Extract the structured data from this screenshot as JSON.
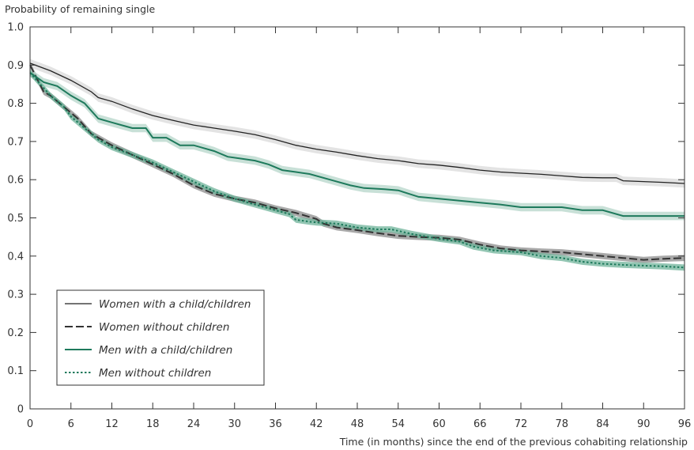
{
  "chart_data": {
    "type": "line",
    "ylabel": "Probability of remaining single",
    "xlabel": "Time (in months) since the end of the previous cohabiting relationship",
    "xlim": [
      0,
      96
    ],
    "ylim": [
      0,
      1.0
    ],
    "x_ticks": [
      0,
      6,
      12,
      18,
      24,
      30,
      36,
      42,
      48,
      54,
      60,
      66,
      72,
      78,
      84,
      90,
      96
    ],
    "y_ticks": [
      0,
      0.1,
      0.2,
      0.3,
      0.4,
      0.5,
      0.6,
      0.7,
      0.8,
      0.9,
      1.0
    ],
    "y_tick_labels": [
      "0",
      "0.1",
      "0.2",
      "0.3",
      "0.4",
      "0.5",
      "0.6",
      "0.7",
      "0.8",
      "0.9",
      "1.0"
    ],
    "grid": false,
    "legend_position": "bottom-left",
    "series": [
      {
        "name": "Women with a child/children",
        "color": "#222222",
        "band_color": "#d9d9d9",
        "dash": "solid",
        "band_halfwidth": 0.011,
        "points": [
          [
            0,
            0.905
          ],
          [
            3,
            0.885
          ],
          [
            6,
            0.86
          ],
          [
            9,
            0.83
          ],
          [
            10,
            0.815
          ],
          [
            12,
            0.805
          ],
          [
            15,
            0.785
          ],
          [
            18,
            0.768
          ],
          [
            21,
            0.755
          ],
          [
            24,
            0.743
          ],
          [
            27,
            0.735
          ],
          [
            30,
            0.727
          ],
          [
            33,
            0.718
          ],
          [
            36,
            0.705
          ],
          [
            39,
            0.69
          ],
          [
            42,
            0.68
          ],
          [
            45,
            0.672
          ],
          [
            48,
            0.663
          ],
          [
            51,
            0.655
          ],
          [
            54,
            0.65
          ],
          [
            57,
            0.642
          ],
          [
            60,
            0.638
          ],
          [
            63,
            0.632
          ],
          [
            66,
            0.625
          ],
          [
            69,
            0.62
          ],
          [
            72,
            0.617
          ],
          [
            75,
            0.614
          ],
          [
            78,
            0.61
          ],
          [
            81,
            0.606
          ],
          [
            84,
            0.605
          ],
          [
            86,
            0.605
          ],
          [
            87,
            0.597
          ],
          [
            90,
            0.595
          ],
          [
            93,
            0.593
          ],
          [
            96,
            0.59
          ]
        ]
      },
      {
        "name": "Women without children",
        "color": "#333333",
        "band_color": "#8c8c8c",
        "dash": "long-dash",
        "band_halfwidth": 0.008,
        "points": [
          [
            0,
            0.9
          ],
          [
            2,
            0.83
          ],
          [
            3,
            0.82
          ],
          [
            5,
            0.79
          ],
          [
            7,
            0.76
          ],
          [
            8,
            0.74
          ],
          [
            9,
            0.72
          ],
          [
            10,
            0.71
          ],
          [
            12,
            0.69
          ],
          [
            15,
            0.665
          ],
          [
            18,
            0.64
          ],
          [
            21,
            0.615
          ],
          [
            24,
            0.585
          ],
          [
            27,
            0.563
          ],
          [
            30,
            0.55
          ],
          [
            33,
            0.54
          ],
          [
            36,
            0.525
          ],
          [
            39,
            0.513
          ],
          [
            42,
            0.497
          ],
          [
            43,
            0.485
          ],
          [
            45,
            0.475
          ],
          [
            48,
            0.468
          ],
          [
            51,
            0.46
          ],
          [
            54,
            0.453
          ],
          [
            57,
            0.45
          ],
          [
            60,
            0.448
          ],
          [
            63,
            0.443
          ],
          [
            66,
            0.43
          ],
          [
            69,
            0.42
          ],
          [
            72,
            0.415
          ],
          [
            75,
            0.412
          ],
          [
            78,
            0.41
          ],
          [
            81,
            0.405
          ],
          [
            84,
            0.4
          ],
          [
            87,
            0.395
          ],
          [
            90,
            0.39
          ],
          [
            93,
            0.393
          ],
          [
            96,
            0.395
          ]
        ]
      },
      {
        "name": "Men with a child/children",
        "color": "#1e7a5c",
        "band_color": "#b5d6c9",
        "dash": "solid",
        "band_halfwidth": 0.011,
        "points": [
          [
            0,
            0.88
          ],
          [
            2,
            0.855
          ],
          [
            4,
            0.845
          ],
          [
            6,
            0.82
          ],
          [
            8,
            0.8
          ],
          [
            10,
            0.76
          ],
          [
            12,
            0.75
          ],
          [
            14,
            0.74
          ],
          [
            15,
            0.735
          ],
          [
            17,
            0.735
          ],
          [
            18,
            0.71
          ],
          [
            20,
            0.71
          ],
          [
            21,
            0.7
          ],
          [
            22,
            0.69
          ],
          [
            24,
            0.69
          ],
          [
            27,
            0.675
          ],
          [
            29,
            0.66
          ],
          [
            31,
            0.655
          ],
          [
            33,
            0.65
          ],
          [
            35,
            0.64
          ],
          [
            37,
            0.625
          ],
          [
            39,
            0.62
          ],
          [
            41,
            0.615
          ],
          [
            44,
            0.6
          ],
          [
            47,
            0.585
          ],
          [
            49,
            0.578
          ],
          [
            52,
            0.575
          ],
          [
            54,
            0.572
          ],
          [
            57,
            0.555
          ],
          [
            60,
            0.55
          ],
          [
            63,
            0.545
          ],
          [
            66,
            0.54
          ],
          [
            69,
            0.535
          ],
          [
            72,
            0.528
          ],
          [
            78,
            0.528
          ],
          [
            81,
            0.52
          ],
          [
            84,
            0.52
          ],
          [
            87,
            0.505
          ],
          [
            90,
            0.505
          ],
          [
            96,
            0.505
          ]
        ]
      },
      {
        "name": "Men without children",
        "color": "#1e7a5c",
        "band_color": "#6fb39a",
        "dash": "dotted",
        "band_halfwidth": 0.008,
        "points": [
          [
            0,
            0.88
          ],
          [
            2,
            0.84
          ],
          [
            3,
            0.82
          ],
          [
            5,
            0.79
          ],
          [
            6,
            0.765
          ],
          [
            8,
            0.735
          ],
          [
            10,
            0.705
          ],
          [
            12,
            0.685
          ],
          [
            15,
            0.665
          ],
          [
            18,
            0.645
          ],
          [
            21,
            0.62
          ],
          [
            24,
            0.595
          ],
          [
            27,
            0.57
          ],
          [
            30,
            0.55
          ],
          [
            33,
            0.535
          ],
          [
            36,
            0.52
          ],
          [
            38,
            0.51
          ],
          [
            39,
            0.495
          ],
          [
            41,
            0.49
          ],
          [
            42,
            0.488
          ],
          [
            45,
            0.485
          ],
          [
            48,
            0.475
          ],
          [
            51,
            0.47
          ],
          [
            53,
            0.47
          ],
          [
            56,
            0.458
          ],
          [
            60,
            0.445
          ],
          [
            63,
            0.438
          ],
          [
            65,
            0.425
          ],
          [
            68,
            0.415
          ],
          [
            72,
            0.41
          ],
          [
            75,
            0.4
          ],
          [
            78,
            0.395
          ],
          [
            81,
            0.385
          ],
          [
            84,
            0.38
          ],
          [
            87,
            0.377
          ],
          [
            90,
            0.375
          ],
          [
            93,
            0.373
          ],
          [
            96,
            0.37
          ]
        ]
      }
    ]
  }
}
